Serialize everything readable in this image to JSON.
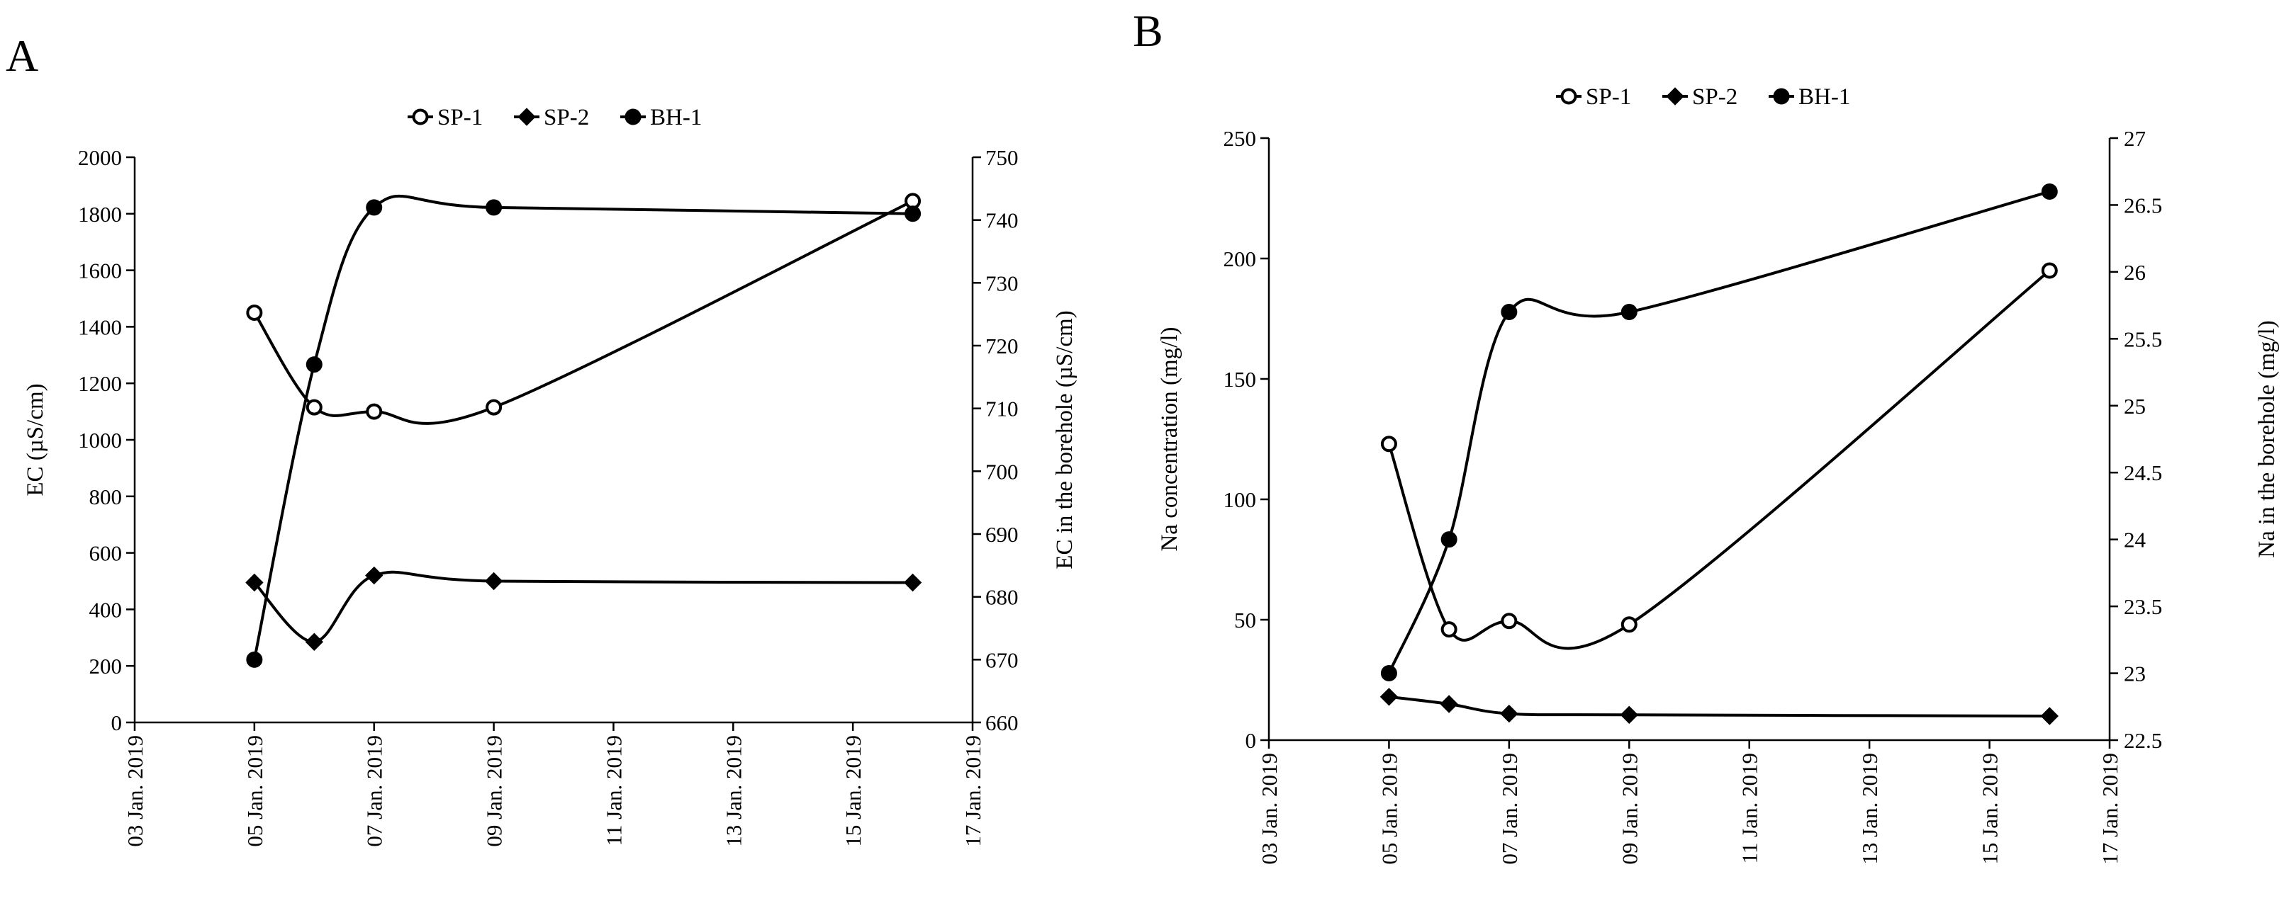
{
  "figure": {
    "panels": [
      "A",
      "B"
    ]
  },
  "legend": [
    {
      "name": "SP-1",
      "marker": "open-circle"
    },
    {
      "name": "SP-2",
      "marker": "diamond"
    },
    {
      "name": "BH-1",
      "marker": "filled-circle"
    }
  ],
  "colors": {
    "line": "#000000",
    "fill": "#ffffff",
    "axis": "#000000"
  },
  "chart_data": [
    {
      "panel": "A",
      "type": "line",
      "title": "",
      "xlabel": "",
      "ylabel": "EC (µS/cm)",
      "y2label": "EC in the borehole (µS/cm)",
      "x_ticks": [
        "03 Jan. 2019",
        "05 Jan. 2019",
        "07 Jan. 2019",
        "09 Jan. 2019",
        "11 Jan. 2019",
        "13 Jan. 2019",
        "15 Jan. 2019",
        "17 Jan. 2019"
      ],
      "xlim": [
        3,
        17
      ],
      "ylim": [
        0,
        2000
      ],
      "y_ticks": [
        0,
        200,
        400,
        600,
        800,
        1000,
        1200,
        1400,
        1600,
        1800,
        2000
      ],
      "y2lim": [
        660,
        750
      ],
      "y2_ticks": [
        660,
        670,
        680,
        690,
        700,
        710,
        720,
        730,
        740,
        750
      ],
      "series": [
        {
          "name": "SP-1",
          "axis": "left",
          "marker": "open-circle",
          "x": [
            5,
            6,
            7,
            9,
            16
          ],
          "values": [
            1450,
            1115,
            1100,
            1115,
            1845
          ]
        },
        {
          "name": "SP-2",
          "axis": "left",
          "marker": "diamond",
          "x": [
            5,
            6,
            7,
            9,
            16
          ],
          "values": [
            495,
            285,
            520,
            500,
            495
          ]
        },
        {
          "name": "BH-1",
          "axis": "right",
          "marker": "filled-circle",
          "x": [
            5,
            6,
            7,
            9,
            16
          ],
          "values": [
            670,
            717,
            742,
            742,
            741
          ]
        }
      ]
    },
    {
      "panel": "B",
      "type": "line",
      "title": "",
      "xlabel": "",
      "ylabel": "Na concentration (mg/l)",
      "y2label": "Na in the borehole (mg/l)",
      "x_ticks": [
        "03 Jan. 2019",
        "05 Jan. 2019",
        "07 Jan. 2019",
        "09 Jan. 2019",
        "11 Jan. 2019",
        "13 Jan. 2019",
        "15 Jan. 2019",
        "17 Jan. 2019"
      ],
      "xlim": [
        3,
        17
      ],
      "ylim": [
        0,
        250
      ],
      "y_ticks": [
        0,
        50,
        100,
        150,
        200,
        250
      ],
      "y2lim": [
        22.5,
        27
      ],
      "y2_ticks": [
        "22.5",
        "23",
        "23.5",
        "24",
        "24.5",
        "25",
        "25.5",
        "26",
        "26.5",
        "27"
      ],
      "series": [
        {
          "name": "SP-1",
          "axis": "left",
          "marker": "open-circle",
          "x": [
            5,
            6,
            7,
            9,
            16
          ],
          "values": [
            123,
            46,
            49.5,
            48,
            195
          ]
        },
        {
          "name": "SP-2",
          "axis": "left",
          "marker": "diamond",
          "x": [
            5,
            6,
            7,
            9,
            16
          ],
          "values": [
            18,
            15,
            11,
            10.5,
            10
          ]
        },
        {
          "name": "BH-1",
          "axis": "right",
          "marker": "filled-circle",
          "x": [
            5,
            6,
            7,
            9,
            16
          ],
          "values": [
            23,
            24,
            25.7,
            25.7,
            26.6
          ]
        }
      ]
    }
  ]
}
